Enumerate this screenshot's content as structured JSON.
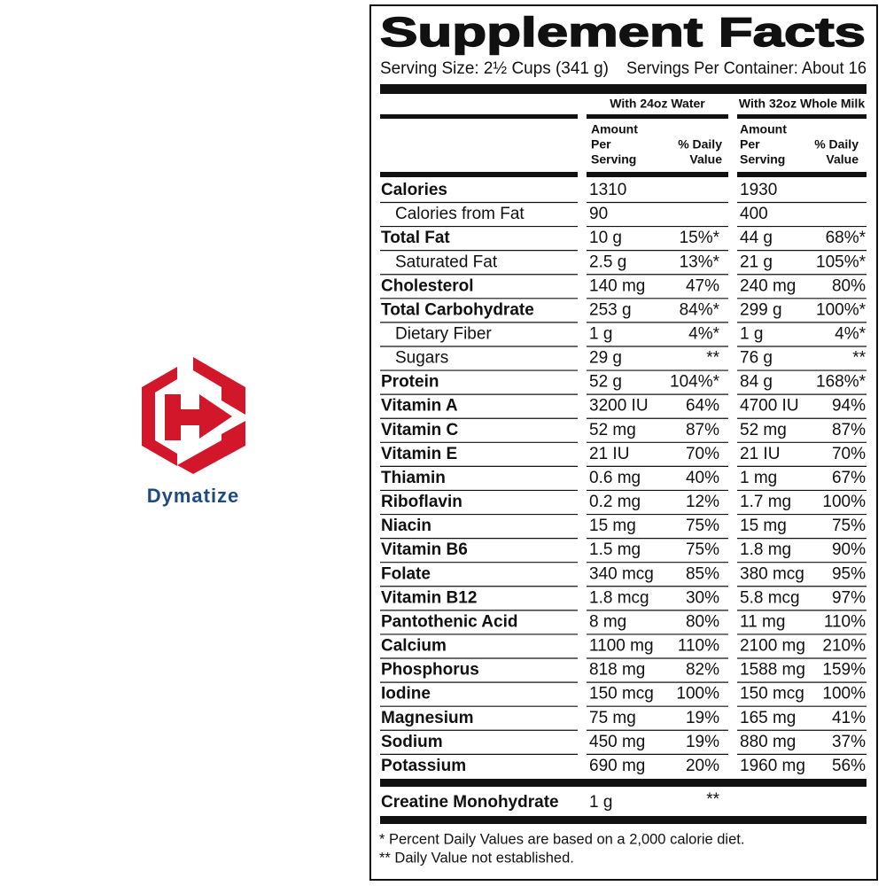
{
  "brand": "Dymatize",
  "label": {
    "title": "Supplement Facts",
    "serving_size": "Serving Size: 2½ Cups (341 g)",
    "servings_per_container": "Servings Per Container: About 16",
    "groups": [
      "With 24oz Water",
      "With 32oz Whole Milk"
    ],
    "amount_header": [
      "Amount",
      "Per",
      "Serving"
    ],
    "dv_header": [
      "% Daily",
      "Value"
    ],
    "rows": [
      {
        "name": "Calories",
        "water": {
          "amount": "1310"
        },
        "milk": {
          "amount": "1930"
        }
      },
      {
        "name": "Calories from Fat",
        "sub": true,
        "water": {
          "amount": "90"
        },
        "milk": {
          "amount": "400"
        }
      },
      {
        "name": "Total Fat",
        "water": {
          "amount": "10 g",
          "dv": "15%*"
        },
        "milk": {
          "amount": "44 g",
          "dv": "68%*"
        }
      },
      {
        "name": "Saturated Fat",
        "sub": true,
        "water": {
          "amount": "2.5 g",
          "dv": "13%*"
        },
        "milk": {
          "amount": "21 g",
          "dv": "105%*"
        }
      },
      {
        "name": "Cholesterol",
        "water": {
          "amount": "140 mg",
          "dv": "47%"
        },
        "milk": {
          "amount": "240 mg",
          "dv": "80%"
        }
      },
      {
        "name": "Total Carbohydrate",
        "water": {
          "amount": "253 g",
          "dv": "84%*"
        },
        "milk": {
          "amount": "299 g",
          "dv": "100%*"
        }
      },
      {
        "name": "Dietary Fiber",
        "sub": true,
        "water": {
          "amount": "1 g",
          "dv": "4%*"
        },
        "milk": {
          "amount": "1 g",
          "dv": "4%*"
        }
      },
      {
        "name": "Sugars",
        "sub": true,
        "water": {
          "amount": "29 g",
          "dv": "**"
        },
        "milk": {
          "amount": "76 g",
          "dv": "**"
        }
      },
      {
        "name": "Protein",
        "water": {
          "amount": "52 g",
          "dv": "104%*"
        },
        "milk": {
          "amount": "84 g",
          "dv": "168%*"
        }
      },
      {
        "name": "Vitamin A",
        "water": {
          "amount": "3200 IU",
          "dv": "64%"
        },
        "milk": {
          "amount": "4700 IU",
          "dv": "94%"
        }
      },
      {
        "name": "Vitamin C",
        "water": {
          "amount": "52 mg",
          "dv": "87%"
        },
        "milk": {
          "amount": "52 mg",
          "dv": "87%"
        }
      },
      {
        "name": "Vitamin E",
        "water": {
          "amount": "21 IU",
          "dv": "70%"
        },
        "milk": {
          "amount": "21 IU",
          "dv": "70%"
        }
      },
      {
        "name": "Thiamin",
        "water": {
          "amount": "0.6 mg",
          "dv": "40%"
        },
        "milk": {
          "amount": "1 mg",
          "dv": "67%"
        }
      },
      {
        "name": "Riboflavin",
        "water": {
          "amount": "0.2 mg",
          "dv": "12%"
        },
        "milk": {
          "amount": "1.7 mg",
          "dv": "100%"
        }
      },
      {
        "name": "Niacin",
        "water": {
          "amount": "15 mg",
          "dv": "75%"
        },
        "milk": {
          "amount": "15 mg",
          "dv": "75%"
        }
      },
      {
        "name": "Vitamin B6",
        "water": {
          "amount": "1.5 mg",
          "dv": "75%"
        },
        "milk": {
          "amount": "1.8 mg",
          "dv": "90%"
        }
      },
      {
        "name": "Folate",
        "water": {
          "amount": "340 mcg",
          "dv": "85%"
        },
        "milk": {
          "amount": "380 mcg",
          "dv": "95%"
        }
      },
      {
        "name": "Vitamin B12",
        "water": {
          "amount": "1.8 mcg",
          "dv": "30%"
        },
        "milk": {
          "amount": "5.8 mcg",
          "dv": "97%"
        }
      },
      {
        "name": "Pantothenic Acid",
        "water": {
          "amount": "8 mg",
          "dv": "80%"
        },
        "milk": {
          "amount": "11 mg",
          "dv": "110%"
        }
      },
      {
        "name": "Calcium",
        "water": {
          "amount": "1100 mg",
          "dv": "110%"
        },
        "milk": {
          "amount": "2100 mg",
          "dv": "210%"
        }
      },
      {
        "name": "Phosphorus",
        "water": {
          "amount": "818 mg",
          "dv": "82%"
        },
        "milk": {
          "amount": "1588 mg",
          "dv": "159%"
        }
      },
      {
        "name": "Iodine",
        "water": {
          "amount": "150 mcg",
          "dv": "100%"
        },
        "milk": {
          "amount": "150 mcg",
          "dv": "100%"
        }
      },
      {
        "name": "Magnesium",
        "water": {
          "amount": "75 mg",
          "dv": "19%"
        },
        "milk": {
          "amount": "165 mg",
          "dv": "41%"
        }
      },
      {
        "name": "Sodium",
        "water": {
          "amount": "450 mg",
          "dv": "19%"
        },
        "milk": {
          "amount": "880 mg",
          "dv": "37%"
        }
      },
      {
        "name": "Potassium",
        "water": {
          "amount": "690 mg",
          "dv": "20%"
        },
        "milk": {
          "amount": "1960 mg",
          "dv": "56%"
        }
      }
    ],
    "extra": {
      "name": "Creatine Monohydrate",
      "amount": "1 g",
      "dv": "**"
    },
    "footnotes": [
      "* Percent Daily Values are based on a 2,000 calorie diet.",
      "** Daily Value not established."
    ]
  }
}
